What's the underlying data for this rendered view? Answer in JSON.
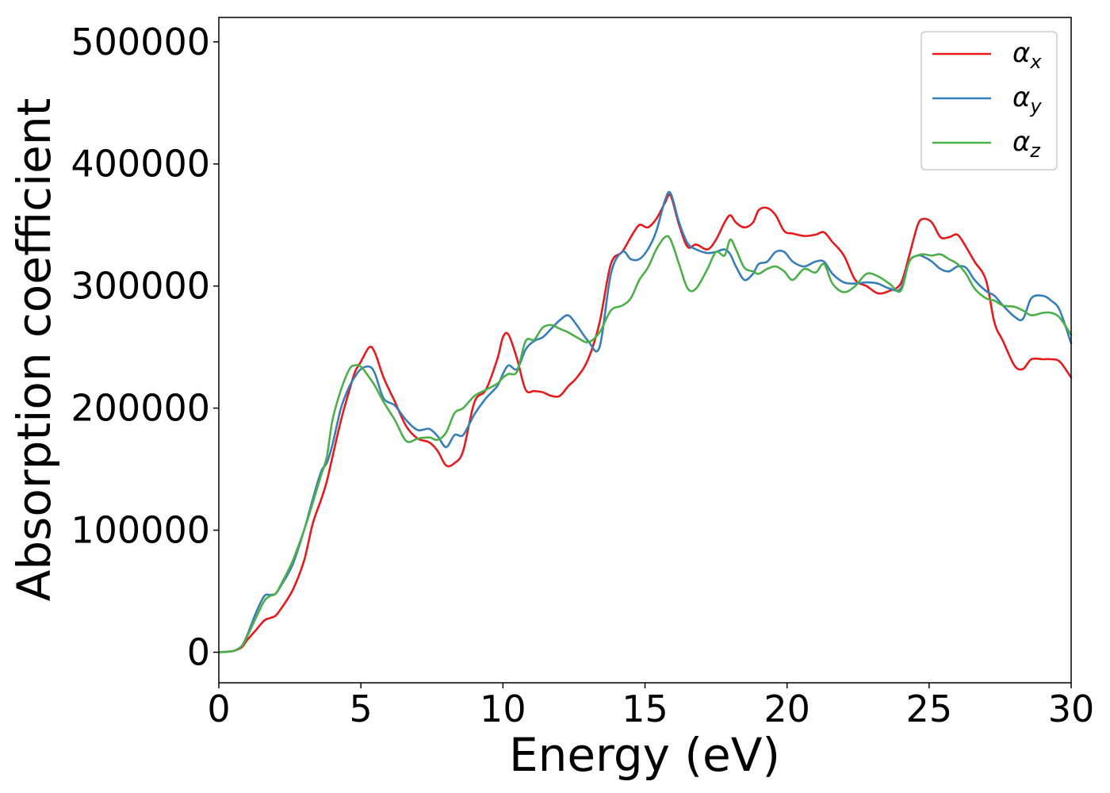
{
  "chart_data": {
    "type": "line",
    "xlabel": "Energy (eV)",
    "ylabel": "Absorption coefficient",
    "xlim": [
      0,
      30
    ],
    "ylim": [
      -25000,
      520000
    ],
    "xticks": [
      0,
      5,
      10,
      15,
      20,
      25,
      30
    ],
    "xtick_labels": [
      "0",
      "5",
      "10",
      "15",
      "20",
      "25",
      "30"
    ],
    "yticks": [
      0,
      100000,
      200000,
      300000,
      400000,
      500000
    ],
    "ytick_labels": [
      "0",
      "100000",
      "200000",
      "300000",
      "400000",
      "500000"
    ],
    "grid": false,
    "legend_position": "top-right",
    "series": [
      {
        "name": "α",
        "subscript": "x",
        "color": "#e41a1c",
        "x": [
          0,
          0.5,
          0.8,
          1.0,
          1.3,
          1.6,
          1.8,
          2.0,
          2.2,
          2.6,
          3.0,
          3.3,
          3.6,
          3.8,
          4.0,
          4.3,
          4.6,
          4.8,
          5.0,
          5.3,
          5.5,
          5.8,
          6.2,
          6.6,
          7.0,
          7.4,
          7.7,
          8.0,
          8.3,
          8.6,
          9.0,
          9.4,
          9.8,
          10.0,
          10.2,
          10.5,
          10.8,
          11.1,
          11.4,
          11.7,
          12.0,
          12.3,
          12.6,
          13.0,
          13.4,
          13.8,
          14.2,
          14.5,
          14.8,
          15.1,
          15.4,
          15.7,
          15.9,
          16.2,
          16.5,
          16.8,
          17.2,
          17.5,
          17.8,
          18.0,
          18.2,
          18.5,
          18.8,
          19.0,
          19.3,
          19.6,
          19.9,
          20.2,
          20.6,
          21.0,
          21.3,
          21.6,
          22.0,
          22.4,
          22.8,
          23.2,
          23.6,
          24.0,
          24.3,
          24.6,
          24.8,
          25.1,
          25.4,
          25.7,
          26.0,
          26.3,
          26.6,
          27.0,
          27.3,
          27.6,
          28.0,
          28.3,
          28.6,
          29.0,
          29.3,
          29.6,
          30.0
        ],
        "y": [
          0,
          1000,
          4000,
          10000,
          18000,
          26000,
          28000,
          30000,
          36000,
          51000,
          75000,
          105000,
          125000,
          140000,
          160000,
          190000,
          215000,
          230000,
          238000,
          250000,
          245000,
          225000,
          205000,
          185000,
          175000,
          172000,
          165000,
          153000,
          155000,
          165000,
          205000,
          215000,
          240000,
          258000,
          260000,
          240000,
          215000,
          214000,
          213000,
          210000,
          210000,
          218000,
          225000,
          240000,
          270000,
          318000,
          328000,
          340000,
          350000,
          348000,
          355000,
          368000,
          374000,
          350000,
          332000,
          334000,
          330000,
          338000,
          352000,
          358000,
          352000,
          348000,
          352000,
          362000,
          364000,
          358000,
          345000,
          343000,
          341000,
          342000,
          344000,
          336000,
          325000,
          305000,
          300000,
          294000,
          296000,
          302000,
          325000,
          350000,
          355000,
          352000,
          340000,
          340000,
          342000,
          332000,
          320000,
          305000,
          270000,
          255000,
          235000,
          232000,
          240000,
          240000,
          240000,
          238000,
          225000
        ]
      },
      {
        "name": "α",
        "subscript": "y",
        "color": "#377eb8",
        "x": [
          0,
          0.5,
          0.8,
          1.0,
          1.3,
          1.6,
          1.8,
          2.0,
          2.2,
          2.6,
          3.0,
          3.3,
          3.6,
          3.8,
          4.0,
          4.3,
          4.6,
          4.8,
          5.0,
          5.3,
          5.5,
          5.8,
          6.2,
          6.6,
          7.0,
          7.4,
          7.7,
          8.0,
          8.3,
          8.6,
          9.0,
          9.4,
          9.8,
          10.0,
          10.2,
          10.5,
          10.8,
          11.1,
          11.4,
          11.7,
          12.0,
          12.3,
          12.6,
          13.0,
          13.4,
          13.8,
          14.2,
          14.5,
          14.8,
          15.1,
          15.4,
          15.7,
          15.9,
          16.2,
          16.5,
          16.8,
          17.2,
          17.5,
          17.8,
          18.0,
          18.2,
          18.5,
          18.8,
          19.0,
          19.3,
          19.6,
          19.9,
          20.2,
          20.6,
          21.0,
          21.3,
          21.6,
          22.0,
          22.4,
          22.8,
          23.2,
          23.6,
          24.0,
          24.3,
          24.6,
          24.8,
          25.1,
          25.4,
          25.7,
          26.0,
          26.3,
          26.6,
          27.0,
          27.3,
          27.6,
          28.0,
          28.3,
          28.6,
          29.0,
          29.3,
          29.6,
          30.0
        ],
        "y": [
          0,
          1000,
          5000,
          14000,
          32000,
          46000,
          47000,
          48000,
          55000,
          72000,
          100000,
          125000,
          148000,
          155000,
          170000,
          200000,
          218000,
          226000,
          232000,
          234000,
          228000,
          208000,
          202000,
          190000,
          182000,
          183000,
          177000,
          168000,
          178000,
          178000,
          195000,
          208000,
          218000,
          228000,
          235000,
          232000,
          248000,
          255000,
          258000,
          265000,
          272000,
          276000,
          268000,
          255000,
          250000,
          310000,
          328000,
          322000,
          322000,
          330000,
          345000,
          370000,
          376000,
          352000,
          335000,
          330000,
          327000,
          328000,
          330000,
          326000,
          316000,
          305000,
          310000,
          318000,
          320000,
          328000,
          328000,
          320000,
          316000,
          320000,
          320000,
          310000,
          303000,
          302000,
          303000,
          302000,
          298000,
          298000,
          320000,
          325000,
          324000,
          320000,
          314000,
          312000,
          316000,
          315000,
          305000,
          296000,
          292000,
          284000,
          275000,
          273000,
          290000,
          292000,
          288000,
          280000,
          253000
        ]
      },
      {
        "name": "α",
        "subscript": "z",
        "color": "#4daf4a",
        "x": [
          0,
          0.5,
          0.8,
          1.0,
          1.3,
          1.6,
          1.8,
          2.0,
          2.2,
          2.6,
          3.0,
          3.3,
          3.6,
          3.8,
          4.0,
          4.3,
          4.6,
          4.8,
          5.0,
          5.3,
          5.5,
          5.8,
          6.2,
          6.6,
          7.0,
          7.4,
          7.7,
          8.0,
          8.3,
          8.6,
          9.0,
          9.4,
          9.8,
          10.0,
          10.2,
          10.5,
          10.8,
          11.1,
          11.4,
          11.7,
          12.0,
          12.3,
          12.6,
          13.0,
          13.4,
          13.8,
          14.2,
          14.5,
          14.8,
          15.1,
          15.4,
          15.7,
          15.9,
          16.2,
          16.5,
          16.8,
          17.2,
          17.5,
          17.8,
          18.0,
          18.2,
          18.5,
          18.8,
          19.0,
          19.3,
          19.6,
          19.9,
          20.2,
          20.6,
          21.0,
          21.3,
          21.6,
          22.0,
          22.4,
          22.8,
          23.2,
          23.6,
          24.0,
          24.3,
          24.6,
          24.8,
          25.1,
          25.4,
          25.7,
          26.0,
          26.3,
          26.6,
          27.0,
          27.3,
          27.6,
          28.0,
          28.3,
          28.6,
          29.0,
          29.3,
          29.6,
          30.0
        ],
        "y": [
          0,
          1000,
          5000,
          13000,
          28000,
          42000,
          46000,
          48000,
          56000,
          75000,
          100000,
          122000,
          145000,
          160000,
          190000,
          215000,
          232000,
          235000,
          234000,
          225000,
          218000,
          205000,
          190000,
          173000,
          175000,
          176000,
          174000,
          180000,
          196000,
          200000,
          210000,
          215000,
          220000,
          225000,
          228000,
          230000,
          255000,
          256000,
          266000,
          268000,
          265000,
          262000,
          258000,
          254000,
          262000,
          280000,
          284000,
          290000,
          305000,
          315000,
          330000,
          340000,
          338000,
          318000,
          298000,
          298000,
          314000,
          328000,
          325000,
          338000,
          330000,
          315000,
          312000,
          310000,
          314000,
          316000,
          312000,
          305000,
          314000,
          311000,
          318000,
          302000,
          295000,
          300000,
          310000,
          308000,
          302000,
          296000,
          320000,
          325000,
          326000,
          325000,
          326000,
          322000,
          318000,
          310000,
          298000,
          290000,
          288000,
          284000,
          283000,
          280000,
          276000,
          278000,
          278000,
          274000,
          260000
        ]
      }
    ]
  }
}
